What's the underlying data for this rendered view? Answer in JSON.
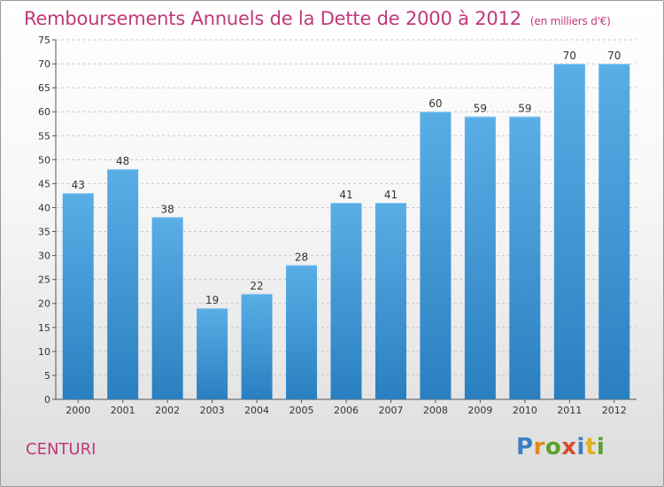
{
  "header": {
    "title": "Remboursements Annuels de la Dette de 2000 à 2012",
    "unit": "(en milliers d'€)"
  },
  "footer": {
    "commune": "CENTURI",
    "logo": "Proxiti"
  },
  "colors": {
    "accent": "#c0397a",
    "bar_top": "#5aaee6",
    "bar_bottom": "#2a7fc0",
    "logo_letters": [
      "#3b7fc4",
      "#e08a1e",
      "#5aa02c",
      "#d84a2c",
      "#3b7fc4",
      "#e0b020",
      "#5aa02c"
    ]
  },
  "chart_data": {
    "type": "bar",
    "categories": [
      "2000",
      "2001",
      "2002",
      "2003",
      "2004",
      "2005",
      "2006",
      "2007",
      "2008",
      "2009",
      "2010",
      "2011",
      "2012"
    ],
    "values": [
      43,
      48,
      38,
      19,
      22,
      28,
      41,
      41,
      60,
      59,
      59,
      70,
      70
    ],
    "ylim": [
      0,
      75
    ],
    "yticks": [
      0,
      5,
      10,
      15,
      20,
      25,
      30,
      35,
      40,
      45,
      50,
      55,
      60,
      65,
      70,
      75
    ],
    "grid": true,
    "data_labels": true
  }
}
